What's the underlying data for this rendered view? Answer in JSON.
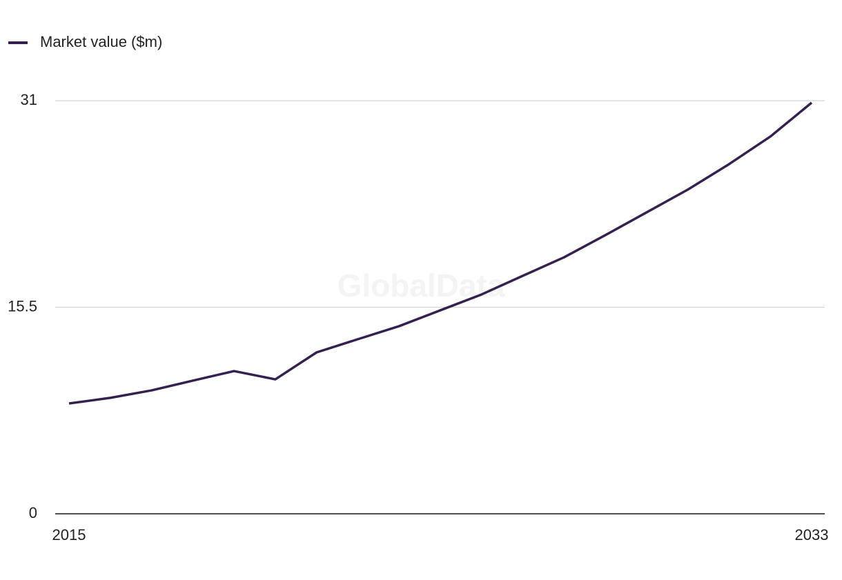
{
  "chart_data": {
    "type": "line",
    "watermark": "GlobalData",
    "x": [
      2015,
      2016,
      2017,
      2018,
      2019,
      2020,
      2021,
      2022,
      2023,
      2024,
      2025,
      2026,
      2027,
      2028,
      2029,
      2030,
      2031,
      2032,
      2033
    ],
    "series": [
      {
        "name": "Market value ($m)",
        "color": "#35214f",
        "values": [
          8.28,
          8.7,
          9.26,
          9.99,
          10.71,
          10.09,
          12.11,
          13.1,
          14.08,
          15.27,
          16.46,
          17.86,
          19.25,
          20.91,
          22.62,
          24.33,
          26.24,
          28.31,
          30.85
        ]
      }
    ],
    "xlim": [
      2015,
      2033
    ],
    "xticks": [
      2015,
      2033
    ],
    "ylim": [
      0,
      31
    ],
    "yticks": [
      0,
      15.5,
      31
    ],
    "grid": true,
    "legend": "top-left"
  }
}
